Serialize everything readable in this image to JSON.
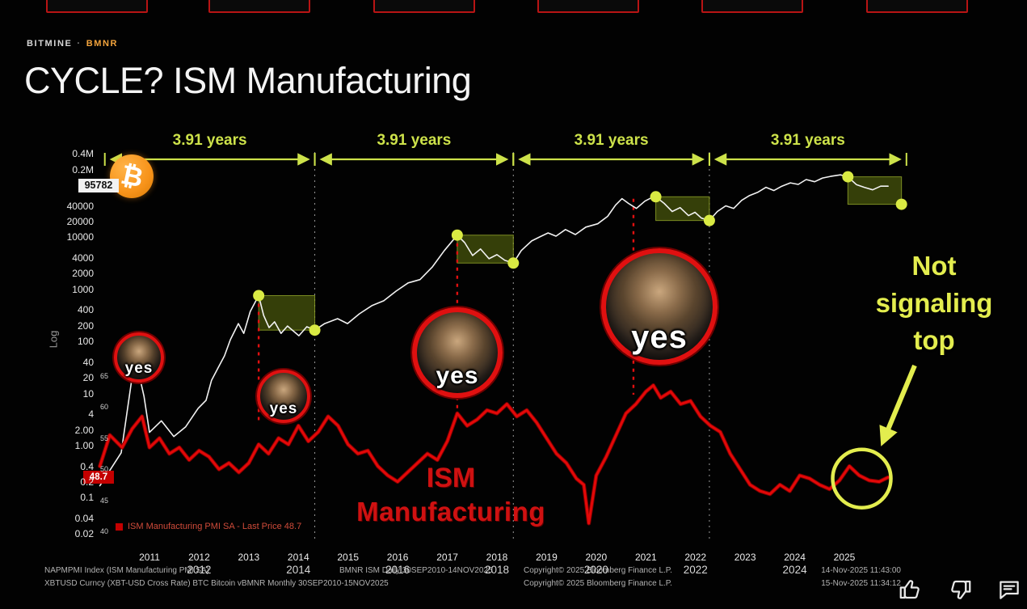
{
  "header": {
    "ticker": "BITMINE",
    "separator": "·",
    "symbol": "BMNR",
    "title": "CYCLE? ISM Manufacturing"
  },
  "chart_data": {
    "type": "line",
    "title": "CYCLE? ISM Manufacturing",
    "x_range": [
      2010,
      2026.3
    ],
    "y_scale": "log",
    "y_range_price": [
      0.02,
      400000
    ],
    "y_range_ism": [
      40,
      65
    ],
    "grid": false,
    "btc_logo": "₿",
    "log_label": "Log",
    "price_badge": "95782",
    "ism_badge": "48.7",
    "x_ticks": [
      "2011",
      "2012",
      "2013",
      "2014",
      "2015",
      "2016",
      "2017",
      "2018",
      "2019",
      "2020",
      "2021",
      "2022",
      "2023",
      "2024",
      "2025"
    ],
    "btc_axis_labels": [
      [
        "0.4M",
        400000
      ],
      [
        "0.2M",
        200000
      ],
      [
        "40000",
        40000
      ],
      [
        "20000",
        20000
      ],
      [
        "10000",
        10000
      ],
      [
        "4000",
        4000
      ],
      [
        "2000",
        2000
      ],
      [
        "1000",
        1000
      ],
      [
        "400",
        400
      ],
      [
        "200",
        200
      ],
      [
        "100",
        100
      ],
      [
        "40",
        40
      ],
      [
        "20",
        20
      ],
      [
        "10",
        10
      ],
      [
        "4",
        4
      ],
      [
        "2.00",
        2
      ],
      [
        "1.00",
        1
      ],
      [
        "0.4",
        0.4
      ],
      [
        "0.2",
        0.2
      ],
      [
        "0.1",
        0.1
      ],
      [
        "0.04",
        0.04
      ],
      [
        "0.02",
        0.02
      ]
    ],
    "ism_axis_ticks": [
      65,
      60,
      55,
      50,
      45,
      40
    ],
    "cycle_labels": [
      "3.91 years",
      "3.91 years",
      "3.91 years",
      "3.91 years"
    ],
    "span_years": [
      2010.1,
      2014.33,
      2018.33,
      2022.28,
      2026.25
    ],
    "boundaries": [
      2014.33,
      2018.33,
      2022.28
    ],
    "cycle_tops": [
      {
        "top": [
          2013.2,
          760
        ],
        "end": [
          2014.33,
          165
        ]
      },
      {
        "top": [
          2017.2,
          11000
        ],
        "end": [
          2018.33,
          3200
        ]
      },
      {
        "top": [
          2021.2,
          60000
        ],
        "end": [
          2022.28,
          21000
        ]
      },
      {
        "top": [
          2025.07,
          145000
        ],
        "end": [
          2026.15,
          43000
        ]
      }
    ],
    "drop_lines": [
      {
        "year": 2013.2,
        "from": 760,
        "to": 57.8
      },
      {
        "year": 2017.2,
        "from": 11000,
        "to": 59
      },
      {
        "year": 2020.75,
        "from": 55000,
        "to": 62
      }
    ],
    "highlight_circle": {
      "year": 2025.35,
      "value": 48.5,
      "radius": 36
    },
    "series": [
      {
        "name": "BTC Bitcoin (XBTUSD)",
        "color": "#f2f2f2",
        "scale": "log",
        "points": [
          [
            2010.0,
            0.17
          ],
          [
            2010.43,
            0.73
          ],
          [
            2010.64,
            18
          ],
          [
            2010.76,
            31
          ],
          [
            2010.89,
            8.9
          ],
          [
            2011.0,
            1.8
          ],
          [
            2011.24,
            3.0
          ],
          [
            2011.49,
            1.5
          ],
          [
            2011.73,
            2.3
          ],
          [
            2011.98,
            5.2
          ],
          [
            2012.14,
            7.4
          ],
          [
            2012.25,
            18
          ],
          [
            2012.38,
            31
          ],
          [
            2012.51,
            53
          ],
          [
            2012.63,
            108
          ],
          [
            2012.79,
            220
          ],
          [
            2012.9,
            143
          ],
          [
            2013.03,
            377
          ],
          [
            2013.2,
            760
          ],
          [
            2013.3,
            316
          ],
          [
            2013.41,
            184
          ],
          [
            2013.52,
            238
          ],
          [
            2013.65,
            143
          ],
          [
            2013.78,
            198
          ],
          [
            2014.01,
            129
          ],
          [
            2014.17,
            192
          ],
          [
            2014.33,
            165
          ],
          [
            2014.53,
            220
          ],
          [
            2014.79,
            274
          ],
          [
            2014.99,
            220
          ],
          [
            2015.23,
            340
          ],
          [
            2015.48,
            487
          ],
          [
            2015.72,
            604
          ],
          [
            2015.97,
            928
          ],
          [
            2016.21,
            1330
          ],
          [
            2016.45,
            1540
          ],
          [
            2016.7,
            2710
          ],
          [
            2016.94,
            5560
          ],
          [
            2017.2,
            11000
          ],
          [
            2017.35,
            7900
          ],
          [
            2017.51,
            4470
          ],
          [
            2017.67,
            5960
          ],
          [
            2017.84,
            3880
          ],
          [
            2018.0,
            4640
          ],
          [
            2018.16,
            3610
          ],
          [
            2018.33,
            3200
          ],
          [
            2018.49,
            5560
          ],
          [
            2018.7,
            8500
          ],
          [
            2018.86,
            10150
          ],
          [
            2019.03,
            12150
          ],
          [
            2019.19,
            10500
          ],
          [
            2019.38,
            14100
          ],
          [
            2019.58,
            11300
          ],
          [
            2019.79,
            15700
          ],
          [
            2020.03,
            18200
          ],
          [
            2020.23,
            25200
          ],
          [
            2020.39,
            41500
          ],
          [
            2020.52,
            55300
          ],
          [
            2020.65,
            44700
          ],
          [
            2020.81,
            35800
          ],
          [
            2020.98,
            49400
          ],
          [
            2021.11,
            57300
          ],
          [
            2021.2,
            60000
          ],
          [
            2021.37,
            44700
          ],
          [
            2021.53,
            31300
          ],
          [
            2021.69,
            37200
          ],
          [
            2021.86,
            26100
          ],
          [
            2021.99,
            30200
          ],
          [
            2022.12,
            23300
          ],
          [
            2022.28,
            21000
          ],
          [
            2022.44,
            31300
          ],
          [
            2022.61,
            40200
          ],
          [
            2022.77,
            35800
          ],
          [
            2022.93,
            51200
          ],
          [
            2023.09,
            63500
          ],
          [
            2023.26,
            73400
          ],
          [
            2023.42,
            91000
          ],
          [
            2023.58,
            78900
          ],
          [
            2023.74,
            95800
          ],
          [
            2023.91,
            111000
          ],
          [
            2024.07,
            103500
          ],
          [
            2024.23,
            128500
          ],
          [
            2024.4,
            116500
          ],
          [
            2024.56,
            137500
          ],
          [
            2024.72,
            147500
          ],
          [
            2024.92,
            158000
          ],
          [
            2025.07,
            145000
          ],
          [
            2025.24,
            103000
          ],
          [
            2025.4,
            91000
          ],
          [
            2025.57,
            81500
          ],
          [
            2025.73,
            95800
          ],
          [
            2025.88,
            95782
          ]
        ]
      },
      {
        "name": "ISM Manufacturing PMI SA",
        "color": "#e30808",
        "scale": "ism",
        "points": [
          [
            2010.0,
            50.5
          ],
          [
            2010.2,
            55.5
          ],
          [
            2010.45,
            53.5
          ],
          [
            2010.65,
            56.5
          ],
          [
            2010.85,
            58.5
          ],
          [
            2011.0,
            53.5
          ],
          [
            2011.2,
            55
          ],
          [
            2011.4,
            52.5
          ],
          [
            2011.6,
            53.5
          ],
          [
            2011.8,
            51.5
          ],
          [
            2012.0,
            53
          ],
          [
            2012.2,
            52
          ],
          [
            2012.4,
            50
          ],
          [
            2012.6,
            51
          ],
          [
            2012.8,
            49.5
          ],
          [
            2013.0,
            51
          ],
          [
            2013.2,
            54
          ],
          [
            2013.4,
            52.5
          ],
          [
            2013.6,
            55
          ],
          [
            2013.8,
            54
          ],
          [
            2014.0,
            57
          ],
          [
            2014.2,
            54.5
          ],
          [
            2014.4,
            56
          ],
          [
            2014.6,
            58.5
          ],
          [
            2014.8,
            57
          ],
          [
            2015.0,
            54
          ],
          [
            2015.2,
            52.5
          ],
          [
            2015.4,
            53
          ],
          [
            2015.6,
            50.5
          ],
          [
            2015.8,
            49
          ],
          [
            2016.0,
            48
          ],
          [
            2016.2,
            49.5
          ],
          [
            2016.4,
            51
          ],
          [
            2016.6,
            52.5
          ],
          [
            2016.8,
            51.5
          ],
          [
            2017.0,
            54.5
          ],
          [
            2017.2,
            59
          ],
          [
            2017.4,
            57
          ],
          [
            2017.6,
            58
          ],
          [
            2017.8,
            59.5
          ],
          [
            2018.0,
            59
          ],
          [
            2018.2,
            60.5
          ],
          [
            2018.4,
            58.5
          ],
          [
            2018.6,
            59.5
          ],
          [
            2018.8,
            57.5
          ],
          [
            2019.0,
            55
          ],
          [
            2019.2,
            52.5
          ],
          [
            2019.4,
            51
          ],
          [
            2019.6,
            48.5
          ],
          [
            2019.75,
            47.5
          ],
          [
            2019.85,
            41.3
          ],
          [
            2020.0,
            49
          ],
          [
            2020.2,
            52
          ],
          [
            2020.4,
            55.5
          ],
          [
            2020.6,
            59
          ],
          [
            2020.8,
            60.5
          ],
          [
            2021.0,
            62.5
          ],
          [
            2021.15,
            63.5
          ],
          [
            2021.3,
            61.5
          ],
          [
            2021.5,
            62.5
          ],
          [
            2021.7,
            60.5
          ],
          [
            2021.9,
            61
          ],
          [
            2022.1,
            58.5
          ],
          [
            2022.3,
            57
          ],
          [
            2022.5,
            56
          ],
          [
            2022.7,
            52.5
          ],
          [
            2022.9,
            50
          ],
          [
            2023.1,
            47.5
          ],
          [
            2023.3,
            46.5
          ],
          [
            2023.5,
            46
          ],
          [
            2023.7,
            47.5
          ],
          [
            2023.9,
            46.5
          ],
          [
            2024.1,
            49
          ],
          [
            2024.3,
            48.5
          ],
          [
            2024.5,
            47.5
          ],
          [
            2024.7,
            46.8
          ],
          [
            2024.9,
            48.2
          ],
          [
            2025.1,
            50.5
          ],
          [
            2025.3,
            49
          ],
          [
            2025.5,
            48.2
          ],
          [
            2025.7,
            48
          ],
          [
            2025.88,
            48.7
          ]
        ]
      }
    ]
  },
  "annotations": {
    "yes_label": "yes",
    "not_signaling": [
      "Not",
      "signaling",
      "top"
    ],
    "ism_label": [
      "ISM",
      "Manufacturing"
    ]
  },
  "legend": {
    "text": "ISM Manufacturing PMI SA - Last Price 48.7"
  },
  "footer": {
    "years_row2": [
      "2012",
      "2014",
      "2016",
      "2018",
      "2020",
      "2022",
      "2024"
    ],
    "line1_left": "NAPMPMI Index (ISM Manufacturing PMI SA)",
    "line1_mid": "BMNR ISM Daily 30SEP2010-14NOV2025",
    "line1_copyright": "Copyright© 2025 Bloomberg Finance L.P.",
    "line1_timestamp": "14-Nov-2025 11:43:00",
    "line2_left": "XBTUSD Curncy (XBT-USD Cross Rate) BTC Bitcoin vBMNR Monthly 30SEP2010-15NOV2025",
    "line2_copyright": "Copyright© 2025 Bloomberg Finance L.P.",
    "line2_timestamp": "15-Nov-2025 11:34:12"
  }
}
